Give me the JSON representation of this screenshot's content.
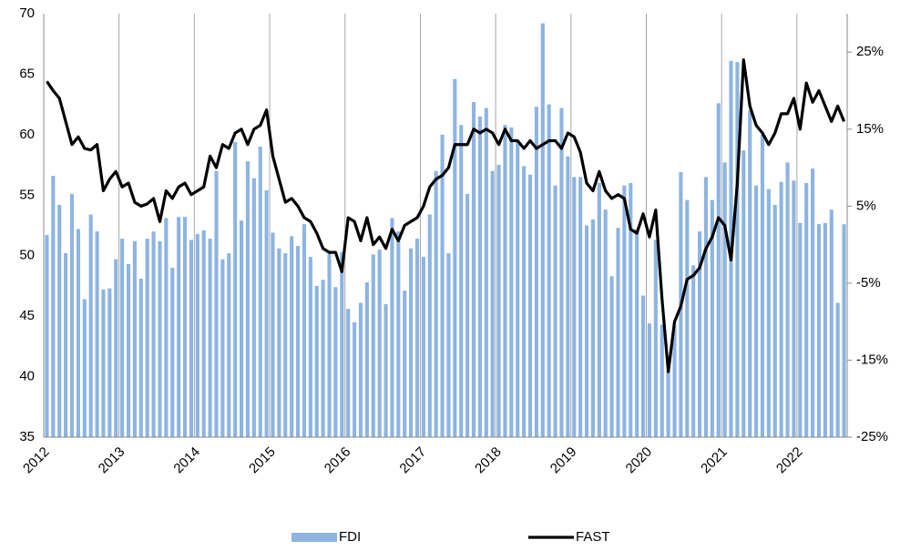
{
  "chart_data": {
    "type": "bar",
    "categories": [
      "2012",
      null,
      null,
      null,
      null,
      null,
      null,
      null,
      null,
      null,
      null,
      null,
      "2013",
      null,
      null,
      null,
      null,
      null,
      null,
      null,
      null,
      null,
      null,
      null,
      "2014",
      null,
      null,
      null,
      null,
      null,
      null,
      null,
      null,
      null,
      null,
      null,
      "2015",
      null,
      null,
      null,
      null,
      null,
      null,
      null,
      null,
      null,
      null,
      null,
      "2016",
      null,
      null,
      null,
      null,
      null,
      null,
      null,
      null,
      null,
      null,
      null,
      "2017",
      null,
      null,
      null,
      null,
      null,
      null,
      null,
      null,
      null,
      null,
      null,
      "2018",
      null,
      null,
      null,
      null,
      null,
      null,
      null,
      null,
      null,
      null,
      null,
      "2019",
      null,
      null,
      null,
      null,
      null,
      null,
      null,
      null,
      null,
      null,
      null,
      "2020",
      null,
      null,
      null,
      null,
      null,
      null,
      null,
      null,
      null,
      null,
      null,
      "2021",
      null,
      null,
      null,
      null,
      null,
      null,
      null,
      null,
      null,
      null,
      null,
      "2022",
      null,
      null,
      null,
      null,
      null,
      null,
      null
    ],
    "series": [
      {
        "name": "FDI",
        "type": "bar",
        "color": "#8db4e2",
        "values": [
          51.7,
          56.6,
          54.2,
          50.2,
          55.1,
          52.2,
          46.4,
          53.4,
          52.0,
          47.2,
          47.3,
          49.7,
          51.4,
          49.3,
          51.2,
          48.1,
          51.4,
          52.0,
          51.2,
          53.1,
          49.0,
          53.2,
          53.2,
          51.3,
          51.8,
          52.1,
          51.4,
          57.0,
          49.7,
          50.2,
          59.4,
          52.9,
          57.8,
          56.4,
          59.0,
          55.4,
          51.9,
          50.6,
          50.2,
          51.6,
          50.8,
          52.6,
          49.9,
          47.5,
          48.0,
          50.4,
          47.4,
          50.3,
          45.6,
          44.5,
          46.1,
          47.8,
          50.1,
          50.5,
          46.0,
          53.1,
          52.0,
          47.1,
          50.6,
          51.4,
          49.9,
          53.4,
          57.0,
          60.0,
          50.2,
          64.6,
          60.8,
          55.1,
          62.7,
          61.5,
          62.2,
          57.0,
          57.5,
          60.8,
          60.6,
          59.4,
          57.4,
          56.7,
          62.3,
          69.2,
          62.5,
          55.8,
          62.2,
          58.2,
          56.5,
          56.5,
          52.5,
          53.0,
          56.0,
          53.8,
          48.3,
          52.3,
          55.8,
          56.0,
          52.2,
          46.7,
          44.4,
          51.3,
          44.3,
          40.6,
          44.2,
          56.9,
          54.6,
          49.2,
          52.0,
          56.5,
          54.6,
          62.6,
          57.7,
          66.1,
          66.0,
          58.7,
          62.0,
          55.8,
          60.0,
          55.5,
          54.2,
          56.1,
          57.7,
          56.2,
          52.7,
          56.0,
          57.2,
          52.6,
          52.7,
          53.8,
          46.1,
          52.6
        ]
      },
      {
        "name": "FAST",
        "type": "line",
        "axis": "y2",
        "color": "#000000",
        "values": [
          21.2,
          20,
          19,
          16,
          13,
          14,
          12.5,
          12.3,
          13,
          7,
          8.5,
          9.5,
          7.5,
          8,
          5.5,
          5,
          5.3,
          6,
          3,
          7,
          6,
          7.5,
          8,
          6.5,
          7,
          7.5,
          11.5,
          10,
          13,
          12.5,
          14.5,
          15,
          13,
          15,
          15.5,
          17.5,
          11.5,
          8.5,
          5.5,
          6,
          5,
          3.5,
          3,
          1.5,
          -0.5,
          -1,
          -1,
          -3.5,
          3.5,
          3,
          0.5,
          3.5,
          0,
          1,
          -0.5,
          2,
          0.5,
          2.5,
          3,
          3.5,
          5,
          7.5,
          8.5,
          9,
          10,
          13,
          13,
          13,
          15,
          14.5,
          15,
          14.5,
          13,
          15,
          13.5,
          13.5,
          12.5,
          13.5,
          12.5,
          13,
          13.5,
          13.5,
          12.5,
          14.5,
          14,
          12,
          8,
          7,
          9.5,
          7,
          6,
          6.5,
          6,
          2,
          1.5,
          4,
          1,
          4.5,
          -7,
          -16.5,
          -10,
          -8,
          -4.5,
          -4,
          -3,
          -0.5,
          1,
          3.5,
          2.5,
          -2,
          8,
          24,
          18,
          15.5,
          14.5,
          13,
          14.5,
          17,
          17,
          19,
          15,
          21,
          18.5,
          20,
          18,
          16,
          18,
          16
        ]
      }
    ],
    "ylim": [
      35,
      70
    ],
    "yticks": [
      35,
      40,
      45,
      50,
      55,
      60,
      65,
      70
    ],
    "y2lim": [
      -25,
      30
    ],
    "y2ticks": [
      {
        "value": -25,
        "label": "-25%"
      },
      {
        "value": -15,
        "label": "-15%"
      },
      {
        "value": -5,
        "label": "-5%"
      },
      {
        "value": 5,
        "label": "5%"
      },
      {
        "value": 15,
        "label": "15%"
      },
      {
        "value": 25,
        "label": "25%"
      }
    ],
    "grid": true,
    "legend": "bottom"
  }
}
